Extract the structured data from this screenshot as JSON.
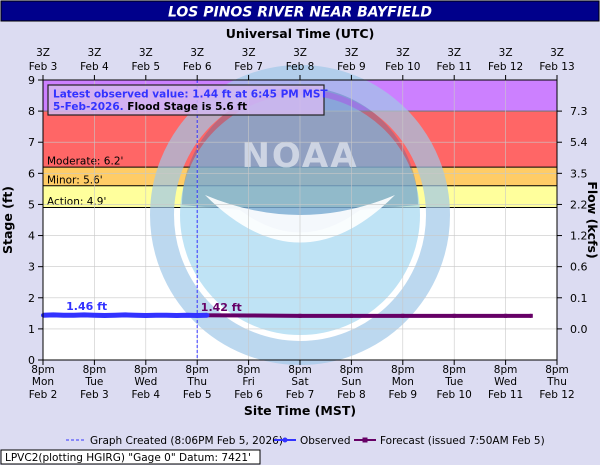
{
  "chart_data": {
    "type": "line",
    "title": "LOS PINOS RIVER NEAR BAYFIELD",
    "top_axis_title": "Universal Time (UTC)",
    "top_ticks": [
      {
        "l1": "3Z",
        "l2": "Feb  3"
      },
      {
        "l1": "3Z",
        "l2": "Feb  4"
      },
      {
        "l1": "3Z",
        "l2": "Feb  5"
      },
      {
        "l1": "3Z",
        "l2": "Feb  6"
      },
      {
        "l1": "3Z",
        "l2": "Feb  7"
      },
      {
        "l1": "3Z",
        "l2": "Feb  8"
      },
      {
        "l1": "3Z",
        "l2": "Feb  9"
      },
      {
        "l1": "3Z",
        "l2": "Feb 10"
      },
      {
        "l1": "3Z",
        "l2": "Feb 11"
      },
      {
        "l1": "3Z",
        "l2": "Feb 12"
      },
      {
        "l1": "3Z",
        "l2": "Feb 13"
      }
    ],
    "xlabel": "Site Time (MST)",
    "x_ticks": [
      {
        "l1": "8pm",
        "l2": "Mon",
        "l3": "Feb 2"
      },
      {
        "l1": "8pm",
        "l2": "Tue",
        "l3": "Feb 3"
      },
      {
        "l1": "8pm",
        "l2": "Wed",
        "l3": "Feb 4"
      },
      {
        "l1": "8pm",
        "l2": "Thu",
        "l3": "Feb 5"
      },
      {
        "l1": "8pm",
        "l2": "Fri",
        "l3": "Feb 6"
      },
      {
        "l1": "8pm",
        "l2": "Sat",
        "l3": "Feb 7"
      },
      {
        "l1": "8pm",
        "l2": "Sun",
        "l3": "Feb 8"
      },
      {
        "l1": "8pm",
        "l2": "Mon",
        "l3": "Feb 9"
      },
      {
        "l1": "8pm",
        "l2": "Tue",
        "l3": "Feb 10"
      },
      {
        "l1": "8pm",
        "l2": "Wed",
        "l3": "Feb 11"
      },
      {
        "l1": "8pm",
        "l2": "Thu",
        "l3": "Feb 12"
      }
    ],
    "ylabel": "Stage (ft)",
    "y2label": "Flow (kcfs)",
    "ylim": [
      0,
      9
    ],
    "y_ticks": [
      0,
      1,
      2,
      3,
      4,
      5,
      6,
      7,
      8,
      9
    ],
    "y2_ticks": [
      {
        "stage": 1,
        "label": "0.0"
      },
      {
        "stage": 2,
        "label": "0.1"
      },
      {
        "stage": 3,
        "label": "0.6"
      },
      {
        "stage": 4,
        "label": "1.2"
      },
      {
        "stage": 5,
        "label": "2.2"
      },
      {
        "stage": 6,
        "label": "3.5"
      },
      {
        "stage": 7,
        "label": "5.4"
      },
      {
        "stage": 8,
        "label": "7.3"
      }
    ],
    "xlim_days": [
      0,
      10
    ],
    "flood_categories": [
      {
        "label": "Action: 4.9'",
        "from": 4.9,
        "to": 5.6,
        "color": "#ffff9c"
      },
      {
        "label": "Minor: 5.6'",
        "from": 5.6,
        "to": 6.2,
        "color": "#ffcc66"
      },
      {
        "label": "Moderate: 6.2'",
        "from": 6.2,
        "to": 8.0,
        "color": "#ff6666"
      },
      {
        "label": "",
        "from": 8.0,
        "to": 9.0,
        "color": "#cc80ff"
      }
    ],
    "observed": {
      "name": "Observed",
      "color": "#3333ff",
      "days": [
        0.0,
        0.2,
        0.4,
        0.6,
        0.8,
        1.0,
        1.2,
        1.4,
        1.6,
        1.8,
        2.0,
        2.2,
        2.4,
        2.6,
        2.8,
        3.0,
        3.2
      ],
      "values": [
        1.44,
        1.45,
        1.44,
        1.44,
        1.45,
        1.44,
        1.43,
        1.44,
        1.45,
        1.44,
        1.43,
        1.44,
        1.44,
        1.43,
        1.44,
        1.43,
        1.44
      ]
    },
    "forecast": {
      "name": "Forecast (issued 7:50AM Feb 5)",
      "color": "#660066",
      "days": [
        3.0,
        4.0,
        5.0,
        6.0,
        7.0,
        8.0,
        9.0,
        9.5
      ],
      "values": [
        1.44,
        1.43,
        1.42,
        1.42,
        1.42,
        1.42,
        1.42,
        1.42
      ]
    },
    "graph_created_day": 3.0,
    "annotations": {
      "observed_label": "1.46 ft",
      "forecast_label": "1.42 ft",
      "latest_line1": "Latest observed value: 1.44 ft at 6:45 PM MST",
      "latest_line2a": "5-Feb-2026.",
      "latest_line2b": " Flood Stage is 5.6 ft"
    },
    "legend": {
      "placement": "bottom",
      "graph_created": "Graph Created (8:06PM Feb 5, 2026)",
      "observed": "Observed",
      "forecast": "Forecast (issued 7:50AM Feb 5)"
    },
    "footer": "LPVC2(plotting HGIRG) \"Gage 0\" Datum: 7421'",
    "watermark_text": "NATIONAL OCEANIC AND ATMOSPHERIC ADMINISTRATION · U.S. DEPARTMENT OF COMMERCE · NOAA"
  }
}
